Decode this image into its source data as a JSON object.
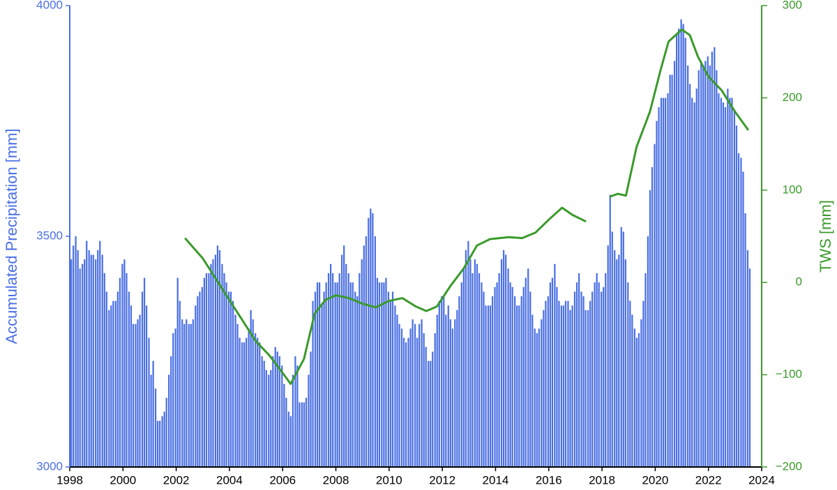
{
  "chart_data": {
    "type": "bar",
    "ylabel": "Accumulated Precipitation [mm]",
    "y2label": "TWS [mm]",
    "xlim": [
      1998,
      2024
    ],
    "xticks": [
      1998,
      2000,
      2002,
      2004,
      2006,
      2008,
      2010,
      2012,
      2014,
      2016,
      2018,
      2020,
      2022,
      2024
    ],
    "ylim": [
      3000,
      4000
    ],
    "yticks": [
      3000,
      3500,
      4000
    ],
    "y2lim": [
      -200,
      300
    ],
    "y2ticks": [
      {
        "value": -200,
        "label": "−200"
      },
      {
        "value": -100,
        "label": "−100"
      },
      0,
      100,
      200,
      300
    ],
    "series": [
      {
        "type": "bar",
        "color": "#4a6fe3",
        "x": [
          1998.0,
          1998.08,
          1998.17,
          1998.25,
          1998.33,
          1998.42,
          1998.5,
          1998.58,
          1998.67,
          1998.75,
          1998.83,
          1998.92,
          1999.0,
          1999.08,
          1999.17,
          1999.25,
          1999.33,
          1999.42,
          1999.5,
          1999.58,
          1999.67,
          1999.75,
          1999.83,
          1999.92,
          2000.0,
          2000.08,
          2000.17,
          2000.25,
          2000.33,
          2000.42,
          2000.5,
          2000.58,
          2000.67,
          2000.75,
          2000.83,
          2000.92,
          2001.0,
          2001.08,
          2001.17,
          2001.25,
          2001.33,
          2001.42,
          2001.5,
          2001.58,
          2001.67,
          2001.75,
          2001.83,
          2001.92,
          2002.0,
          2002.08,
          2002.17,
          2002.25,
          2002.33,
          2002.42,
          2002.5,
          2002.58,
          2002.67,
          2002.75,
          2002.83,
          2002.92,
          2003.0,
          2003.08,
          2003.17,
          2003.25,
          2003.33,
          2003.42,
          2003.5,
          2003.58,
          2003.67,
          2003.75,
          2003.83,
          2003.92,
          2004.0,
          2004.08,
          2004.17,
          2004.25,
          2004.33,
          2004.42,
          2004.5,
          2004.58,
          2004.67,
          2004.75,
          2004.83,
          2004.92,
          2005.0,
          2005.08,
          2005.17,
          2005.25,
          2005.33,
          2005.42,
          2005.5,
          2005.58,
          2005.67,
          2005.75,
          2005.83,
          2005.92,
          2006.0,
          2006.08,
          2006.17,
          2006.25,
          2006.33,
          2006.42,
          2006.5,
          2006.58,
          2006.67,
          2006.75,
          2006.83,
          2006.92,
          2007.0,
          2007.08,
          2007.17,
          2007.25,
          2007.33,
          2007.42,
          2007.5,
          2007.58,
          2007.67,
          2007.75,
          2007.83,
          2007.92,
          2008.0,
          2008.08,
          2008.17,
          2008.25,
          2008.33,
          2008.42,
          2008.5,
          2008.58,
          2008.67,
          2008.75,
          2008.83,
          2008.92,
          2009.0,
          2009.08,
          2009.17,
          2009.25,
          2009.33,
          2009.42,
          2009.5,
          2009.58,
          2009.67,
          2009.75,
          2009.83,
          2009.92,
          2010.0,
          2010.08,
          2010.17,
          2010.25,
          2010.33,
          2010.42,
          2010.5,
          2010.58,
          2010.67,
          2010.75,
          2010.83,
          2010.92,
          2011.0,
          2011.08,
          2011.17,
          2011.25,
          2011.33,
          2011.42,
          2011.5,
          2011.58,
          2011.67,
          2011.75,
          2011.83,
          2011.92,
          2012.0,
          2012.08,
          2012.17,
          2012.25,
          2012.33,
          2012.42,
          2012.5,
          2012.58,
          2012.67,
          2012.75,
          2012.83,
          2012.92,
          2013.0,
          2013.08,
          2013.17,
          2013.25,
          2013.33,
          2013.42,
          2013.5,
          2013.58,
          2013.67,
          2013.75,
          2013.83,
          2013.92,
          2014.0,
          2014.08,
          2014.17,
          2014.25,
          2014.33,
          2014.42,
          2014.5,
          2014.58,
          2014.67,
          2014.75,
          2014.83,
          2014.92,
          2015.0,
          2015.08,
          2015.17,
          2015.25,
          2015.33,
          2015.42,
          2015.5,
          2015.58,
          2015.67,
          2015.75,
          2015.83,
          2015.92,
          2016.0,
          2016.08,
          2016.17,
          2016.25,
          2016.33,
          2016.42,
          2016.5,
          2016.58,
          2016.67,
          2016.75,
          2016.83,
          2016.92,
          2017.0,
          2017.08,
          2017.17,
          2017.25,
          2017.33,
          2017.42,
          2017.5,
          2017.58,
          2017.67,
          2017.75,
          2017.83,
          2017.92,
          2018.0,
          2018.08,
          2018.17,
          2018.25,
          2018.33,
          2018.42,
          2018.5,
          2018.58,
          2018.67,
          2018.75,
          2018.83,
          2018.92,
          2019.0,
          2019.08,
          2019.17,
          2019.25,
          2019.33,
          2019.42,
          2019.5,
          2019.58,
          2019.67,
          2019.75,
          2019.83,
          2019.92,
          2020.0,
          2020.08,
          2020.17,
          2020.25,
          2020.33,
          2020.42,
          2020.5,
          2020.58,
          2020.67,
          2020.75,
          2020.83,
          2020.92,
          2021.0,
          2021.08,
          2021.17,
          2021.25,
          2021.33,
          2021.42,
          2021.5,
          2021.58,
          2021.67,
          2021.75,
          2021.83,
          2021.92,
          2022.0,
          2022.08,
          2022.17,
          2022.25,
          2022.33,
          2022.42,
          2022.5,
          2022.58,
          2022.67,
          2022.75,
          2022.83,
          2022.92,
          2023.0,
          2023.08,
          2023.17,
          2023.25,
          2023.33,
          2023.42,
          2023.5
        ],
        "values": [
          3450,
          3480,
          3500,
          3470,
          3430,
          3440,
          3450,
          3490,
          3470,
          3460,
          3460,
          3450,
          3470,
          3490,
          3460,
          3420,
          3380,
          3340,
          3350,
          3360,
          3360,
          3380,
          3410,
          3440,
          3450,
          3420,
          3380,
          3350,
          3310,
          3310,
          3320,
          3330,
          3380,
          3410,
          3350,
          3280,
          3200,
          3230,
          3170,
          3100,
          3100,
          3110,
          3120,
          3150,
          3200,
          3240,
          3290,
          3300,
          3410,
          3360,
          3320,
          3310,
          3320,
          3310,
          3310,
          3320,
          3350,
          3370,
          3380,
          3390,
          3410,
          3420,
          3420,
          3440,
          3450,
          3460,
          3480,
          3470,
          3440,
          3420,
          3400,
          3380,
          3380,
          3360,
          3330,
          3310,
          3280,
          3270,
          3270,
          3280,
          3300,
          3340,
          3320,
          3290,
          3280,
          3270,
          3240,
          3230,
          3210,
          3200,
          3210,
          3240,
          3260,
          3250,
          3240,
          3220,
          3180,
          3150,
          3120,
          3110,
          3200,
          3240,
          3220,
          3140,
          3140,
          3140,
          3150,
          3200,
          3250,
          3360,
          3380,
          3400,
          3400,
          3350,
          3380,
          3400,
          3420,
          3440,
          3420,
          3400,
          3400,
          3420,
          3460,
          3480,
          3440,
          3420,
          3400,
          3400,
          3380,
          3370,
          3420,
          3450,
          3480,
          3500,
          3540,
          3560,
          3550,
          3500,
          3410,
          3400,
          3400,
          3400,
          3410,
          3380,
          3360,
          3380,
          3350,
          3330,
          3310,
          3300,
          3280,
          3270,
          3280,
          3300,
          3320,
          3310,
          3280,
          3310,
          3320,
          3290,
          3260,
          3230,
          3230,
          3250,
          3290,
          3330,
          3360,
          3370,
          3370,
          3330,
          3350,
          3320,
          3300,
          3320,
          3340,
          3370,
          3400,
          3430,
          3470,
          3490,
          3450,
          3420,
          3450,
          3440,
          3420,
          3400,
          3380,
          3350,
          3350,
          3350,
          3370,
          3390,
          3400,
          3420,
          3450,
          3470,
          3460,
          3430,
          3400,
          3390,
          3370,
          3350,
          3350,
          3370,
          3390,
          3410,
          3430,
          3380,
          3330,
          3300,
          3290,
          3300,
          3320,
          3340,
          3360,
          3370,
          3400,
          3410,
          3440,
          3390,
          3360,
          3350,
          3350,
          3360,
          3360,
          3340,
          3350,
          3380,
          3400,
          3420,
          3380,
          3370,
          3340,
          3340,
          3360,
          3380,
          3400,
          3420,
          3400,
          3380,
          3390,
          3420,
          3480,
          3590,
          3510,
          3470,
          3450,
          3460,
          3520,
          3510,
          3450,
          3400,
          3360,
          3330,
          3300,
          3280,
          3290,
          3320,
          3360,
          3420,
          3500,
          3600,
          3650,
          3700,
          3750,
          3780,
          3800,
          3800,
          3800,
          3810,
          3850,
          3850,
          3880,
          3940,
          3950,
          3970,
          3960,
          3930,
          3870,
          3830,
          3800,
          3790,
          3820,
          3860,
          3880,
          3870,
          3880,
          3890,
          3870,
          3900,
          3910,
          3860,
          3810,
          3800,
          3790,
          3780,
          3820,
          3800,
          3800,
          3770,
          3740,
          3680,
          3670,
          3640,
          3550,
          3470,
          3430
        ]
      },
      {
        "type": "line",
        "axis": "y2",
        "color": "#3a9a2a",
        "x": [
          2002.33,
          2003.0,
          2004.0,
          2005.0,
          2005.5,
          2006.0,
          2006.3,
          2006.8,
          2007.2,
          2007.6,
          2008.0,
          2008.5,
          2009.0,
          2009.5,
          2010.0,
          2010.5,
          2011.0,
          2011.4,
          2011.8,
          2012.3,
          2012.8,
          2013.3,
          2013.8,
          2014.5,
          2015.0,
          2015.5,
          2016.0,
          2016.5,
          2016.9,
          2017.4,
          2017.9,
          2018.3,
          2018.6,
          2018.9,
          2019.3,
          2019.8,
          2020.2,
          2020.5,
          2021.0,
          2021.3,
          2021.6,
          2022.0,
          2022.5,
          2023.0,
          2023.5
        ],
        "values": [
          48,
          26,
          -19,
          -64,
          -79,
          -98,
          -110,
          -83,
          -34,
          -19,
          -14,
          -17,
          -23,
          -27,
          -20,
          -17,
          -26,
          -31,
          -26,
          -4,
          15,
          40,
          47,
          49,
          48,
          54,
          68,
          81,
          73,
          66,
          null,
          93,
          96,
          94,
          147,
          185,
          230,
          261,
          274,
          268,
          245,
          223,
          208,
          185,
          165
        ]
      }
    ]
  }
}
